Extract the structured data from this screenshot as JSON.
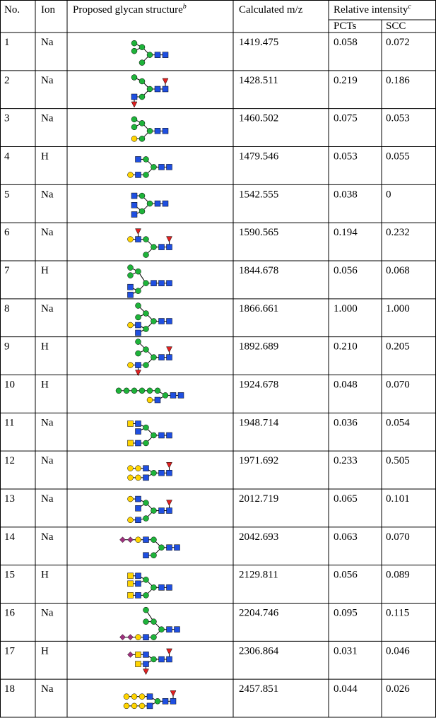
{
  "table": {
    "header": {
      "no": "No.",
      "ion": "Ion",
      "structure": "Proposed glycan structure",
      "structure_note": "b",
      "mz": "Calculated m/z",
      "intensity": "Relative intensity",
      "intensity_note": "c",
      "pcts": "PCTs",
      "scc": "SCC"
    },
    "rows": [
      [
        "1",
        "Na",
        "1419.475",
        "0.058",
        "0.072"
      ],
      [
        "2",
        "Na",
        "1428.511",
        "0.219",
        "0.186"
      ],
      [
        "3",
        "Na",
        "1460.502",
        "0.075",
        "0.053"
      ],
      [
        "4",
        "H",
        "1479.546",
        "0.053",
        "0.055"
      ],
      [
        "5",
        "Na",
        "1542.555",
        "0.038",
        "0"
      ],
      [
        "6",
        "Na",
        "1590.565",
        "0.194",
        "0.232"
      ],
      [
        "7",
        "H",
        "1844.678",
        "0.056",
        "0.068"
      ],
      [
        "8",
        "Na",
        "1866.661",
        "1.000",
        "1.000"
      ],
      [
        "9",
        "H",
        "1892.689",
        "0.210",
        "0.205"
      ],
      [
        "10",
        "H",
        "1924.678",
        "0.048",
        "0.070"
      ],
      [
        "11",
        "Na",
        "1948.714",
        "0.036",
        "0.054"
      ],
      [
        "12",
        "Na",
        "1971.692",
        "0.233",
        "0.505"
      ],
      [
        "13",
        "Na",
        "2012.719",
        "0.065",
        "0.101"
      ],
      [
        "14",
        "Na",
        "2042.693",
        "0.063",
        "0.070"
      ],
      [
        "15",
        "H",
        "2129.811",
        "0.056",
        "0.089"
      ],
      [
        "16",
        "Na",
        "2204.746",
        "0.095",
        "0.115"
      ],
      [
        "17",
        "H",
        "2306.864",
        "0.031",
        "0.046"
      ],
      [
        "18",
        "Na",
        "2457.851",
        "0.044",
        "0.026"
      ]
    ]
  }
}
